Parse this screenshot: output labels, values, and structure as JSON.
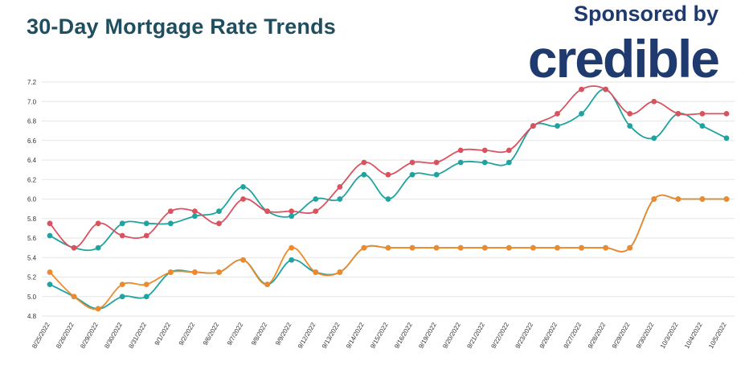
{
  "header": {
    "title": "30-Day Mortgage Rate Trends",
    "sponsor_text": "Sponsored by",
    "brand_logo_text": "credible"
  },
  "colors": {
    "title": "#1f4e5f",
    "brand": "#1f3a6e",
    "grid": "#e6e6e6"
  },
  "chart_data": {
    "type": "line",
    "title": "30-Day Mortgage Rate Trends",
    "xlabel": "",
    "ylabel": "",
    "ylim": [
      4.8,
      7.2
    ],
    "yticks": [
      4.8,
      5.0,
      5.2,
      5.4,
      5.6,
      5.8,
      6.0,
      6.2,
      6.4,
      6.6,
      6.8,
      7.0,
      7.2
    ],
    "grid": true,
    "legend": "none",
    "categories": [
      "8/25/2022",
      "8/26/2022",
      "8/29/2022",
      "8/30/2022",
      "8/31/2022",
      "9/1/2022",
      "9/2/2022",
      "9/6/2022",
      "9/7/2022",
      "9/8/2022",
      "9/9/2022",
      "9/12/2022",
      "9/13/2022",
      "9/14/2022",
      "9/15/2022",
      "9/16/2022",
      "9/19/2022",
      "9/20/2022",
      "9/21/2022",
      "9/22/2022",
      "9/23/2022",
      "9/26/2022",
      "9/27/2022",
      "9/28/2022",
      "9/29/2022",
      "9/30/2022",
      "10/3/2022",
      "10/4/2022",
      "10/5/2022"
    ],
    "series": [
      {
        "color": "#d9535f",
        "values": [
          5.75,
          5.5,
          5.75,
          5.625,
          5.625,
          5.875,
          5.875,
          5.75,
          6.0,
          5.875,
          5.875,
          5.875,
          6.125,
          6.375,
          6.25,
          6.375,
          6.375,
          6.5,
          6.5,
          6.5,
          6.75,
          6.875,
          7.125,
          7.125,
          6.875,
          7.0,
          6.875,
          6.875,
          6.875
        ]
      },
      {
        "color": "#1fa3a0",
        "values": [
          5.625,
          5.5,
          5.5,
          5.75,
          5.75,
          5.75,
          5.825,
          5.875,
          6.125,
          5.875,
          5.825,
          6.0,
          6.0,
          6.25,
          6.0,
          6.25,
          6.25,
          6.375,
          6.375,
          6.375,
          6.75,
          6.75,
          6.875,
          7.125,
          6.75,
          6.625,
          6.875,
          6.75,
          6.625
        ]
      },
      {
        "color": "#ee8a2d",
        "values": [
          5.25,
          5.0,
          4.875,
          5.125,
          5.125,
          5.25,
          5.25,
          5.25,
          5.375,
          5.125,
          5.5,
          5.25,
          5.25,
          5.5,
          5.5,
          5.5,
          5.5,
          5.5,
          5.5,
          5.5,
          5.5,
          5.5,
          5.5,
          5.5,
          5.5,
          6.0,
          6.0,
          6.0,
          6.0
        ]
      },
      {
        "color": "#1fa3a0",
        "values": [
          5.125,
          5.0,
          4.875,
          5.0,
          5.0,
          5.25,
          5.25,
          5.25,
          5.375,
          5.125,
          5.375,
          5.25,
          5.25,
          5.5,
          5.5,
          5.5,
          5.5,
          5.5,
          5.5,
          5.5,
          5.5,
          5.5,
          5.5,
          5.5,
          5.5,
          6.0,
          6.0,
          6.0,
          6.0
        ]
      }
    ]
  }
}
